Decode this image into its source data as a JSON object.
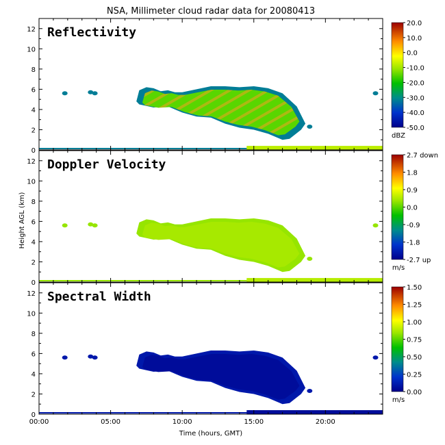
{
  "chart_data": {
    "type": "heatmap",
    "title": "NSA, Millimeter cloud radar data for 20080413",
    "xlabel": "Time (hours, GMT)",
    "ylabel": "Height AGL (km)",
    "xlim": [
      0,
      24
    ],
    "ylim": [
      0,
      13
    ],
    "x_ticks": [
      "00:00",
      "05:00",
      "10:00",
      "15:00",
      "20:00"
    ],
    "x_tick_values": [
      0,
      5,
      10,
      15,
      20
    ],
    "y_ticks": [
      "0",
      "2",
      "4",
      "6",
      "8",
      "10",
      "12"
    ],
    "y_tick_values": [
      0,
      2,
      4,
      6,
      8,
      10,
      12
    ],
    "grid": false,
    "panels": [
      {
        "name": "Reflectivity",
        "colorbar_ticks": [
          "20.0",
          "10.0",
          "0.0",
          "-10.0",
          "-20.0",
          "-30.0",
          "-40.0",
          "-50.0"
        ],
        "colorbar_unit": "dBZ",
        "vmin": -50,
        "vmax": 20,
        "cloud_value": -15,
        "edge_value": -32,
        "band_value": -8
      },
      {
        "name": "Doppler Velocity",
        "colorbar_ticks": [
          "2.7 down",
          "1.8",
          "0.9",
          "0.0",
          "-0.9",
          "-1.8",
          "-2.7 up"
        ],
        "colorbar_unit": "m/s",
        "vmin": -2.7,
        "vmax": 2.7,
        "cloud_value": 0.4,
        "edge_value": 0.3,
        "band_value": 0.5
      },
      {
        "name": "Spectral Width",
        "colorbar_ticks": [
          "1.50",
          "1.25",
          "1.00",
          "0.75",
          "0.50",
          "0.25",
          "0.00"
        ],
        "colorbar_unit": "m/s",
        "vmin": 0,
        "vmax": 1.5,
        "cloud_value": 0.05,
        "edge_value": 0.1,
        "band_value": 0.05
      }
    ],
    "features": {
      "main_cloud": {
        "time_hours": [
          6.8,
          7.0,
          7.5,
          8.0,
          8.5,
          9.0,
          9.5,
          10.0,
          11.0,
          12.0,
          13.0,
          14.0,
          15.0,
          16.0,
          17.0,
          18.0,
          18.6,
          18.3,
          17.5,
          17.0,
          16.0,
          15.0,
          14.0,
          13.0,
          12.0,
          11.0,
          10.0,
          9.0,
          8.0,
          7.0
        ],
        "height_km": [
          4.8,
          5.9,
          6.2,
          6.1,
          5.8,
          5.9,
          5.7,
          5.7,
          6.0,
          6.3,
          6.3,
          6.2,
          6.3,
          6.1,
          5.6,
          4.3,
          2.6,
          2.0,
          1.1,
          1.0,
          1.6,
          2.0,
          2.2,
          2.6,
          3.2,
          3.3,
          3.7,
          4.3,
          4.2,
          4.5
        ]
      },
      "small_echoes": [
        {
          "time": 1.8,
          "height_km": 5.6
        },
        {
          "time": 3.6,
          "height_km": 5.7
        },
        {
          "time": 3.9,
          "height_km": 5.6
        },
        {
          "time": 18.9,
          "height_km": 2.3
        },
        {
          "time": 23.5,
          "height_km": 5.6
        }
      ],
      "ground_band": {
        "time_start": 14.5,
        "time_end": 24,
        "height_top_km": 0.4
      }
    }
  }
}
